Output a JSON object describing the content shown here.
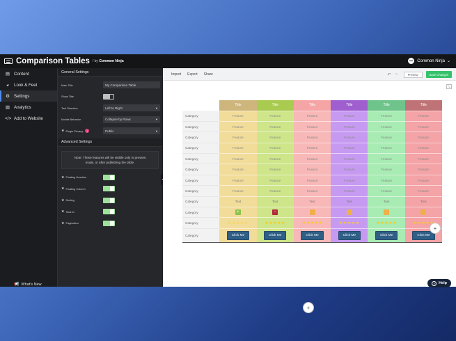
{
  "app": {
    "title": "Comparison Tables",
    "by_prefix": "/ by",
    "by_brand": "Common Ninja",
    "user_name": "Common Ninja"
  },
  "nav": {
    "items": [
      {
        "label": "Content",
        "icon": "list-icon",
        "active": false
      },
      {
        "label": "Look & Feel",
        "icon": "palette-icon",
        "active": false
      },
      {
        "label": "Settings",
        "icon": "gear-icon",
        "active": true
      },
      {
        "label": "Analytics",
        "icon": "bar-chart-icon",
        "active": false
      },
      {
        "label": "Add to Website",
        "icon": "code-icon",
        "active": false
      }
    ],
    "whats_new": "What's New"
  },
  "panel": {
    "general_title": "General Settings",
    "main_title_label": "Main Title",
    "main_title_value": "My Comparison Table",
    "show_title_label": "Show Title",
    "show_title_on": false,
    "text_direction_label": "Text Direction",
    "text_direction_value": "Left to Right",
    "mobile_behavior_label": "Mobile Behavior",
    "mobile_behavior_value": "Collapse by Rows",
    "plugin_privacy_label": "Plugin Privacy",
    "plugin_privacy_badge": "i",
    "plugin_privacy_value": "Public",
    "advanced_title": "Advanced Settings",
    "note": "Note: These features will be visible only in preview mode, or after publishing the table.",
    "advanced": [
      {
        "label": "Floating Headers",
        "on": true
      },
      {
        "label": "Floating Column",
        "on": true
      },
      {
        "label": "Sorting",
        "on": true
      },
      {
        "label": "Search",
        "on": true
      },
      {
        "label": "Pagination",
        "on": true
      }
    ]
  },
  "toolbar": {
    "import": "Import",
    "export": "Export",
    "share": "Share",
    "preview": "Preview",
    "save": "Save Changes"
  },
  "table": {
    "columns": [
      {
        "title": "Title",
        "head": "#cdb57c",
        "body": "#f2dc9a",
        "check": "#8cc44a",
        "check_glyph": "+"
      },
      {
        "title": "Title",
        "head": "#a9cb4f",
        "body": "#cfe58a",
        "check": "#b02a3a",
        "check_glyph": "−"
      },
      {
        "title": "Title",
        "head": "#f5a5a5",
        "body": "#f8b8b8",
        "check": "#efb048",
        "check_glyph": ""
      },
      {
        "title": "Title",
        "head": "#9f5fcf",
        "body": "#c79af2",
        "check": "#efb048",
        "check_glyph": ""
      },
      {
        "title": "Title",
        "head": "#6fc48b",
        "body": "#a8ebb3",
        "check": "#efb048",
        "check_glyph": ""
      },
      {
        "title": "Title",
        "head": "#c07377",
        "body": "#f4a3a6",
        "check": "#efb048",
        "check_glyph": ""
      }
    ],
    "category_label": "Category",
    "feature_label": "Feature",
    "text_label": "Text",
    "cta_label": "Click Me",
    "feature_rows": 8,
    "star_fill": [
      0,
      5,
      5,
      5,
      5,
      5
    ]
  },
  "help_label": "Help"
}
